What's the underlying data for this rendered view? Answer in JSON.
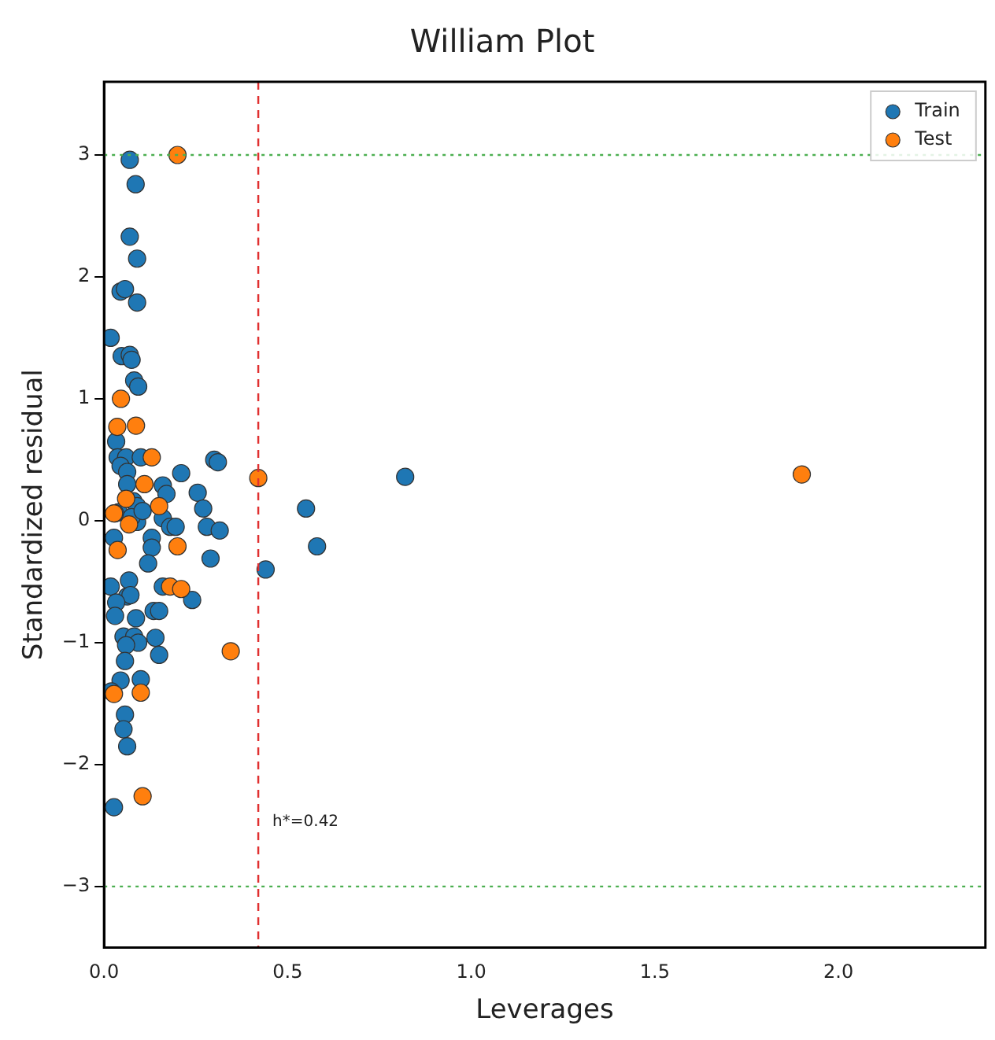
{
  "chart_data": {
    "type": "scatter",
    "title": "William Plot",
    "xlabel": "Leverages",
    "ylabel": "Standardized residual",
    "xlim": [
      0,
      2.4
    ],
    "ylim": [
      -3.5,
      3.6
    ],
    "xticks": [
      {
        "value": 0,
        "label": "0.0"
      },
      0.5,
      {
        "value": 1,
        "label": "1.0"
      },
      1.5,
      {
        "value": 2,
        "label": "2.0"
      }
    ],
    "yticks": [
      -3,
      -2,
      -1,
      0,
      1,
      2,
      3
    ],
    "grid": false,
    "legend": "top right",
    "marker": "circle",
    "ref_lines": [
      {
        "axis": "y",
        "value": 3,
        "color": "#4caf50",
        "line_style": "dotted"
      },
      {
        "axis": "y",
        "value": -3,
        "color": "#4caf50",
        "line_style": "dotted"
      },
      {
        "axis": "x",
        "value": 0.42,
        "label": "h*=0.42",
        "color": "#e03030",
        "line_style": "dashed"
      }
    ],
    "series": [
      {
        "name": "Train",
        "color": "#1f77b4",
        "x": [
          0.07,
          0.086,
          0.07,
          0.09,
          0.045,
          0.057,
          0.09,
          0.018,
          0.048,
          0.07,
          0.075,
          0.082,
          0.093,
          0.033,
          0.037,
          0.06,
          0.1,
          0.3,
          0.31,
          0.21,
          0.045,
          0.063,
          0.255,
          0.16,
          0.17,
          0.063,
          0.27,
          0.08,
          0.09,
          0.04,
          0.03,
          0.09,
          0.075,
          0.105,
          0.16,
          0.18,
          0.195,
          0.28,
          0.315,
          0.027,
          0.13,
          0.13,
          0.12,
          0.29,
          0.44,
          0.018,
          0.068,
          0.063,
          0.072,
          0.24,
          0.16,
          0.033,
          0.03,
          0.135,
          0.15,
          0.087,
          0.053,
          0.082,
          0.093,
          0.14,
          0.15,
          0.06,
          0.057,
          0.045,
          0.02,
          0.1,
          0.057,
          0.053,
          0.063,
          0.027,
          0.82,
          0.55,
          0.58
        ],
        "values": [
          2.96,
          2.76,
          2.33,
          2.15,
          1.88,
          1.9,
          1.79,
          1.5,
          1.35,
          1.36,
          1.32,
          1.15,
          1.1,
          0.65,
          0.52,
          0.52,
          0.52,
          0.5,
          0.48,
          0.39,
          0.45,
          0.4,
          0.23,
          0.29,
          0.22,
          0.3,
          0.1,
          0.16,
          0.12,
          0.07,
          0.06,
          -0.01,
          0.03,
          0.08,
          0.02,
          -0.05,
          -0.05,
          -0.05,
          -0.08,
          -0.14,
          -0.14,
          -0.22,
          -0.35,
          -0.31,
          -0.4,
          -0.54,
          -0.49,
          -0.62,
          -0.61,
          -0.65,
          -0.54,
          -0.67,
          -0.78,
          -0.74,
          -0.74,
          -0.8,
          -0.95,
          -0.95,
          -1.0,
          -0.96,
          -1.1,
          -1.02,
          -1.15,
          -1.31,
          -1.4,
          -1.3,
          -1.59,
          -1.71,
          -1.85,
          -2.35,
          0.36,
          0.1,
          -0.21
        ]
      },
      {
        "name": "Test",
        "color": "#ff7f0e",
        "x": [
          0.2,
          0.046,
          0.036,
          0.087,
          0.13,
          0.42,
          0.11,
          0.06,
          0.15,
          0.027,
          0.068,
          0.037,
          0.2,
          0.18,
          0.21,
          0.345,
          0.027,
          0.1,
          0.105,
          1.9
        ],
        "values": [
          3.0,
          1.0,
          0.77,
          0.78,
          0.52,
          0.35,
          0.3,
          0.18,
          0.12,
          0.06,
          -0.03,
          -0.24,
          -0.21,
          -0.54,
          -0.56,
          -1.07,
          -1.42,
          -1.41,
          -2.26,
          0.38
        ]
      }
    ]
  }
}
